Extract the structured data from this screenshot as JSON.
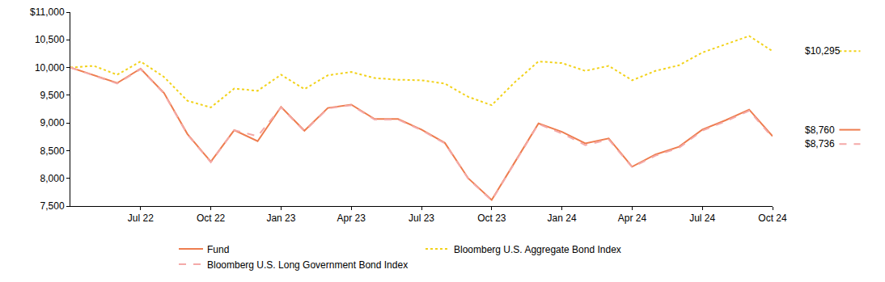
{
  "chart_data": {
    "type": "line",
    "categories": [
      null,
      null,
      null,
      "Jul 22",
      null,
      null,
      "Oct 22",
      null,
      null,
      "Jan 23",
      null,
      null,
      "Apr 23",
      null,
      null,
      "Jul 23",
      null,
      null,
      "Oct 23",
      null,
      null,
      "Jan 24",
      null,
      null,
      "Apr 24",
      null,
      null,
      "Jul 24",
      null,
      null,
      "Oct 24"
    ],
    "series": [
      {
        "name": "Fund",
        "color": "#ee7d4f",
        "line_style": "solid",
        "end_label": "$8,760",
        "values": [
          10000,
          9860,
          9720,
          9980,
          9540,
          8800,
          8300,
          8870,
          8670,
          9290,
          8860,
          9270,
          9330,
          9070,
          9070,
          8880,
          8640,
          8000,
          7610,
          8300,
          8990,
          8840,
          8630,
          8720,
          8210,
          8430,
          8570,
          8880,
          9050,
          9240,
          8760
        ]
      },
      {
        "name": "Bloomberg U.S. Aggregate Bond Index",
        "color": "#f2d21b",
        "line_style": "dot",
        "end_label": "$10,295",
        "values": [
          10000,
          10030,
          9870,
          10110,
          9830,
          9400,
          9280,
          9620,
          9580,
          9870,
          9610,
          9860,
          9920,
          9810,
          9780,
          9770,
          9710,
          9470,
          9320,
          9740,
          10110,
          10080,
          9940,
          10030,
          9770,
          9940,
          10040,
          10270,
          10420,
          10570,
          10295
        ]
      },
      {
        "name": "Bloomberg U.S. Long Government Bond Index",
        "color": "#f4a9a8",
        "line_style": "dash",
        "end_label": "$8,736",
        "values": [
          10000,
          9850,
          9710,
          9970,
          9530,
          8790,
          8290,
          8870,
          8760,
          9280,
          8850,
          9260,
          9320,
          9060,
          9060,
          8870,
          8630,
          7990,
          7600,
          8290,
          8980,
          8810,
          8600,
          8700,
          8200,
          8410,
          8550,
          8860,
          9030,
          9220,
          8736
        ]
      }
    ],
    "ylim": [
      7500,
      11000
    ],
    "yticks": [
      {
        "value": 7500,
        "label": "7,500"
      },
      {
        "value": 8000,
        "label": "8,000"
      },
      {
        "value": 8500,
        "label": "8,500"
      },
      {
        "value": 9000,
        "label": "9,000"
      },
      {
        "value": 9500,
        "label": "9,500"
      },
      {
        "value": 10000,
        "label": "10,000"
      },
      {
        "value": 10500,
        "label": "10,500"
      },
      {
        "value": 11000,
        "label": "$11,000"
      }
    ],
    "grid": false,
    "legend": "bottom"
  }
}
